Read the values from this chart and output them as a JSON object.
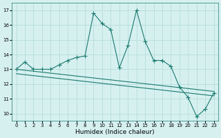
{
  "xlabel": "Humidex (Indice chaleur)",
  "ylabel": "",
  "x": [
    0,
    1,
    2,
    3,
    4,
    5,
    6,
    7,
    8,
    9,
    10,
    11,
    12,
    13,
    14,
    15,
    16,
    17,
    18,
    19,
    20,
    21,
    22,
    23
  ],
  "y_main": [
    13.0,
    13.5,
    13.0,
    13.0,
    13.0,
    13.3,
    13.6,
    13.8,
    13.9,
    16.8,
    16.1,
    15.7,
    13.1,
    14.6,
    17.0,
    14.9,
    13.6,
    13.6,
    13.2,
    11.8,
    11.1,
    9.8,
    10.3,
    11.4
  ],
  "trend_x": [
    0,
    23
  ],
  "trend_y": [
    13.0,
    11.5
  ],
  "line_color": "#1a7a6e",
  "bg_color": "#d6f0f0",
  "grid_color": "#b0d8d8",
  "ylim": [
    9.5,
    17.5
  ],
  "yticks": [
    10,
    11,
    12,
    13,
    14,
    15,
    16,
    17
  ],
  "xticks": [
    0,
    1,
    2,
    3,
    4,
    5,
    6,
    7,
    8,
    9,
    10,
    11,
    12,
    13,
    14,
    15,
    16,
    17,
    18,
    19,
    20,
    21,
    22,
    23
  ],
  "marker": "+",
  "markersize": 4,
  "linewidth": 0.8,
  "tick_fontsize": 5.0,
  "xlabel_fontsize": 6.5
}
